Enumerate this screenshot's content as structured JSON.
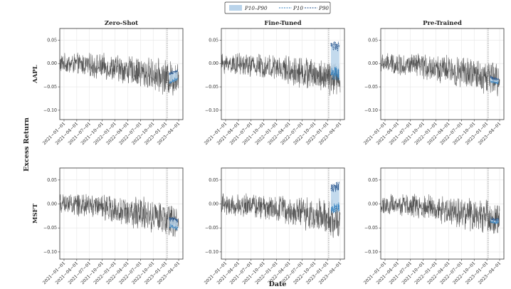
{
  "chart_data": {
    "type": "line",
    "xlabel": "Date",
    "ylabel": "Excess Return",
    "legend": {
      "position": "top-center",
      "entries": [
        "P10–P90",
        "P10",
        "P90"
      ]
    },
    "columns": [
      "Zero-Shot",
      "Fine-Tuned",
      "Pre-Trained"
    ],
    "rows": [
      "AAPL",
      "MSFT"
    ],
    "x_ticks": [
      "2021−01−01",
      "2021−04−01",
      "2021−07−01",
      "2021−10−01",
      "2022−01−01",
      "2022−04−01",
      "2022−07−01",
      "2022−10−01",
      "2023−01−01",
      "2023−04−01"
    ],
    "x_range": [
      0,
      29
    ],
    "forecast_start": 25.3,
    "grid": true,
    "panels": [
      {
        "row": "AAPL",
        "column": "Zero-Shot",
        "ylim": [
          -0.12,
          0.075
        ],
        "yticks": [
          0.05,
          0.0,
          -0.05,
          -0.1
        ],
        "ytick_labels": [
          "0.05",
          "0.00",
          "−0.05",
          "−0.10"
        ],
        "forecast": {
          "center_start": -0.032,
          "center_end": -0.022,
          "p10_offset": -0.009,
          "p90_offset": 0.008
        }
      },
      {
        "row": "AAPL",
        "column": "Fine-Tuned",
        "ylim": [
          -0.12,
          0.075
        ],
        "yticks": [
          0.05,
          0.0,
          -0.05,
          -0.1
        ],
        "ytick_labels": [
          "0.05",
          "0.00",
          "−0.05",
          "−0.10"
        ],
        "forecast": {
          "center_start": 0.012,
          "center_end": 0.014,
          "p10_offset": -0.035,
          "p90_offset": 0.025
        }
      },
      {
        "row": "AAPL",
        "column": "Pre-Trained",
        "ylim": [
          -0.12,
          0.075
        ],
        "yticks": [
          0.05,
          0.0,
          -0.05,
          -0.1
        ],
        "ytick_labels": [
          "0.05",
          "0.00",
          "−0.05",
          "−0.10"
        ],
        "forecast": {
          "center_start": -0.034,
          "center_end": -0.038,
          "p10_offset": -0.004,
          "p90_offset": 0.004
        }
      },
      {
        "row": "MSFT",
        "column": "Zero-Shot",
        "ylim": [
          -0.115,
          0.075
        ],
        "yticks": [
          0.05,
          0.0,
          -0.05,
          -0.1
        ],
        "ytick_labels": [
          "0.05",
          "0.00",
          "−0.05",
          "−0.10"
        ],
        "forecast": {
          "center_start": -0.038,
          "center_end": -0.042,
          "p10_offset": -0.009,
          "p90_offset": 0.008
        }
      },
      {
        "row": "MSFT",
        "column": "Fine-Tuned",
        "ylim": [
          -0.115,
          0.075
        ],
        "yticks": [
          0.05,
          0.0,
          -0.05,
          -0.1
        ],
        "ytick_labels": [
          "0.05",
          "0.00",
          "−0.05",
          "−0.10"
        ],
        "forecast": {
          "center_start": 0.012,
          "center_end": 0.018,
          "p10_offset": -0.025,
          "p90_offset": 0.02
        }
      },
      {
        "row": "MSFT",
        "column": "Pre-Trained",
        "ylim": [
          -0.115,
          0.075
        ],
        "yticks": [
          0.05,
          0.0,
          -0.05,
          -0.1
        ],
        "ytick_labels": [
          "0.05",
          "0.00",
          "−0.05",
          "−0.10"
        ],
        "forecast": {
          "center_start": -0.034,
          "center_end": -0.036,
          "p10_offset": -0.003,
          "p90_offset": 0.003
        }
      }
    ],
    "history_model": {
      "length": 28,
      "start_level": 0.0,
      "end_level": -0.035,
      "noise_amplitude": 0.025,
      "note": "daily excess return series, drifting downward over time"
    },
    "colors": {
      "history": "#555555",
      "band": "#b9d3ea",
      "p10": "#2f7fbf",
      "p90": "#1f4f8a",
      "grid": "#e6e6e6",
      "vline": "#555555"
    }
  }
}
